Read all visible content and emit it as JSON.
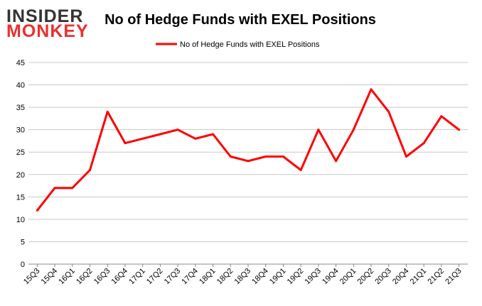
{
  "logo": {
    "line1": "INSIDER",
    "line2": "MONKEY"
  },
  "colors": {
    "series": "#ff0000",
    "grid": "#c8c8c8",
    "axis": "#888888",
    "logo_accent": "#e8312f",
    "logo_dark": "#333333"
  },
  "chart_data": {
    "type": "line",
    "title": "No of Hedge Funds with EXEL Positions",
    "xlabel": "",
    "ylabel": "",
    "ylim": [
      0,
      45
    ],
    "yticks": [
      0,
      5,
      10,
      15,
      20,
      25,
      30,
      35,
      40,
      45
    ],
    "grid": "horizontal",
    "legend": "top-center",
    "categories": [
      "15Q3",
      "15Q4",
      "16Q1",
      "16Q2",
      "16Q3",
      "16Q4",
      "17Q1",
      "17Q2",
      "17Q3",
      "17Q4",
      "18Q1",
      "18Q2",
      "18Q3",
      "18Q4",
      "19Q1",
      "19Q2",
      "19Q3",
      "19Q4",
      "20Q1",
      "20Q2",
      "20Q3",
      "20Q4",
      "21Q1",
      "21Q2",
      "21Q3"
    ],
    "series": [
      {
        "name": "No of Hedge Funds with EXEL Positions",
        "values": [
          12,
          17,
          17,
          21,
          34,
          27,
          28,
          29,
          30,
          28,
          29,
          24,
          23,
          24,
          24,
          21,
          30,
          23,
          30,
          39,
          34,
          24,
          27,
          33,
          30
        ]
      }
    ]
  }
}
